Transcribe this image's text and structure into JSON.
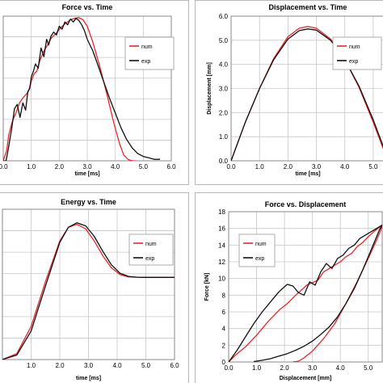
{
  "chart_data": [
    {
      "type": "line",
      "title": "Force vs. Time",
      "xlabel": "time [ms]",
      "ylabel": "",
      "xlim": [
        0,
        6
      ],
      "ylim": [
        0,
        1
      ],
      "x_ticks": [
        "0.0",
        "1.0",
        "2.0",
        "3.0",
        "4.0",
        "5.0",
        "6.0"
      ],
      "y_ticks": [],
      "legend": "right",
      "series": [
        {
          "name": "num",
          "color": "#e8262b",
          "x": [
            0,
            0.12,
            0.2,
            0.32,
            0.45,
            0.58,
            0.72,
            0.82,
            0.9,
            1.0,
            1.1,
            1.2,
            1.32,
            1.45,
            1.58,
            1.72,
            1.88,
            2.05,
            2.22,
            2.4,
            2.55,
            2.7,
            2.85,
            3.0,
            3.2,
            3.45,
            3.7,
            3.95,
            4.15,
            4.3,
            4.45,
            4.6,
            4.72
          ],
          "y": [
            0.0,
            0.07,
            0.18,
            0.27,
            0.33,
            0.4,
            0.44,
            0.46,
            0.48,
            0.55,
            0.6,
            0.62,
            0.7,
            0.76,
            0.8,
            0.85,
            0.88,
            0.92,
            0.95,
            0.975,
            0.985,
            0.99,
            0.975,
            0.93,
            0.82,
            0.65,
            0.46,
            0.26,
            0.12,
            0.04,
            0.01,
            0.0,
            0.0
          ]
        },
        {
          "name": "exp",
          "color": "#111111",
          "x": [
            0,
            0.1,
            0.18,
            0.3,
            0.4,
            0.5,
            0.6,
            0.7,
            0.8,
            0.88,
            0.95,
            1.0,
            1.08,
            1.15,
            1.25,
            1.35,
            1.45,
            1.55,
            1.62,
            1.7,
            1.8,
            1.9,
            2.0,
            2.1,
            2.2,
            2.3,
            2.4,
            2.5,
            2.6,
            2.7,
            2.8,
            2.9,
            3.0,
            3.2,
            3.4,
            3.6,
            3.8,
            4.0,
            4.2,
            4.4,
            4.6,
            4.8,
            5.0,
            5.2,
            5.4,
            5.6
          ],
          "y": [
            0.0,
            0.0,
            0.08,
            0.22,
            0.36,
            0.39,
            0.3,
            0.4,
            0.35,
            0.48,
            0.5,
            0.58,
            0.62,
            0.67,
            0.64,
            0.78,
            0.72,
            0.84,
            0.8,
            0.86,
            0.89,
            0.87,
            0.93,
            0.91,
            0.96,
            0.94,
            0.98,
            0.96,
            0.985,
            0.97,
            0.94,
            0.9,
            0.84,
            0.76,
            0.65,
            0.54,
            0.43,
            0.33,
            0.23,
            0.15,
            0.09,
            0.05,
            0.03,
            0.02,
            0.01,
            0.01
          ]
        }
      ]
    },
    {
      "type": "line",
      "title": "Displacement vs. Time",
      "xlabel": "time [ms]",
      "ylabel": "Displacement [mm]",
      "xlim": [
        0,
        5.4
      ],
      "ylim": [
        0,
        6
      ],
      "x_ticks": [
        "0.0",
        "1.0",
        "2.0",
        "3.0",
        "4.0",
        "5.0"
      ],
      "y_ticks": [
        "0.0",
        "1.0",
        "2.0",
        "3.0",
        "4.0",
        "5.0",
        "6.0"
      ],
      "legend": "right",
      "series": [
        {
          "name": "num",
          "color": "#e8262b",
          "x": [
            0,
            0.5,
            1.0,
            1.5,
            2.0,
            2.4,
            2.7,
            3.0,
            3.5,
            4.0,
            4.5,
            5.0,
            5.4
          ],
          "y": [
            0.0,
            1.6,
            3.0,
            4.25,
            5.15,
            5.5,
            5.57,
            5.5,
            5.05,
            4.2,
            3.05,
            1.6,
            0.35
          ]
        },
        {
          "name": "exp",
          "color": "#111111",
          "x": [
            0,
            0.5,
            1.0,
            1.5,
            2.0,
            2.4,
            2.7,
            3.0,
            3.5,
            4.0,
            4.5,
            5.0,
            5.4
          ],
          "y": [
            0.0,
            1.6,
            3.0,
            4.2,
            5.05,
            5.4,
            5.47,
            5.42,
            5.0,
            4.2,
            3.1,
            1.7,
            0.45
          ]
        }
      ]
    },
    {
      "type": "line",
      "title": "Energy vs. Time",
      "xlabel": "time [ms]",
      "ylabel": "",
      "xlim": [
        0,
        6
      ],
      "ylim": [
        0,
        1
      ],
      "x_ticks": [
        "1.0",
        "2.0",
        "3.0",
        "4.0",
        "5.0",
        "6.0"
      ],
      "y_ticks": [],
      "legend": "right",
      "series": [
        {
          "name": "num",
          "color": "#e8262b",
          "x": [
            0,
            0.5,
            1.0,
            1.5,
            2.0,
            2.3,
            2.6,
            2.9,
            3.2,
            3.5,
            3.8,
            4.1,
            4.4,
            4.7,
            5.0,
            5.3,
            6.0
          ],
          "y": [
            0.0,
            0.04,
            0.22,
            0.52,
            0.79,
            0.88,
            0.9,
            0.87,
            0.79,
            0.69,
            0.61,
            0.565,
            0.55,
            0.548,
            0.547,
            0.547,
            0.547
          ]
        },
        {
          "name": "exp",
          "color": "#111111",
          "x": [
            0,
            0.5,
            1.0,
            1.5,
            2.0,
            2.3,
            2.6,
            2.9,
            3.2,
            3.5,
            3.8,
            4.1,
            4.4,
            4.7,
            5.0,
            5.3,
            6.0
          ],
          "y": [
            0.0,
            0.03,
            0.19,
            0.49,
            0.78,
            0.88,
            0.91,
            0.89,
            0.82,
            0.72,
            0.63,
            0.575,
            0.553,
            0.548,
            0.547,
            0.547,
            0.547
          ]
        }
      ]
    },
    {
      "type": "line",
      "title": "Force vs. Displacement",
      "xlabel": "Displacement [mm]",
      "ylabel": "Force [kN]",
      "xlim": [
        0,
        5.5
      ],
      "ylim": [
        0,
        18
      ],
      "x_ticks": [
        "0.0",
        "1.0",
        "2.0",
        "3.0",
        "4.0",
        "5.0"
      ],
      "y_ticks": [
        "0",
        "2",
        "4",
        "6",
        "8",
        "10",
        "12",
        "14",
        "16",
        "18"
      ],
      "legend": "left",
      "series": [
        {
          "name": "num",
          "color": "#e8262b",
          "x": [
            0,
            0.3,
            0.6,
            1.0,
            1.4,
            1.8,
            2.1,
            2.4,
            2.6,
            2.8,
            3.0,
            3.2,
            3.4,
            3.6,
            3.8,
            4.0,
            4.2,
            4.4,
            4.6,
            4.8,
            5.0,
            5.2,
            5.5,
            5.45,
            5.3,
            5.0,
            4.6,
            4.2,
            3.8,
            3.4,
            3.0,
            2.7,
            2.5,
            2.3
          ],
          "y": [
            0,
            1.0,
            1.8,
            3.2,
            4.8,
            6.2,
            7.0,
            8.0,
            8.6,
            9.2,
            9.5,
            9.8,
            10.8,
            11.2,
            11.6,
            12.0,
            12.6,
            13.0,
            13.8,
            14.3,
            15.0,
            15.6,
            16.4,
            15.8,
            14.6,
            12.4,
            9.6,
            7.0,
            4.6,
            2.8,
            1.3,
            0.5,
            0.1,
            0.0
          ]
        },
        {
          "name": "exp",
          "color": "#111111",
          "x": [
            0,
            0.3,
            0.6,
            0.9,
            1.2,
            1.5,
            1.8,
            2.1,
            2.3,
            2.5,
            2.7,
            2.9,
            3.1,
            3.3,
            3.5,
            3.7,
            3.9,
            4.1,
            4.3,
            4.5,
            4.7,
            4.9,
            5.1,
            5.3,
            5.5,
            5.4,
            5.1,
            4.8,
            4.5,
            4.2,
            3.9,
            3.6,
            3.3,
            3.0,
            2.7,
            2.4,
            2.1,
            1.8,
            1.5,
            1.2,
            0.9
          ],
          "y": [
            0,
            1.4,
            3.0,
            4.6,
            6.0,
            7.2,
            8.4,
            9.3,
            9.1,
            8.3,
            8.0,
            9.6,
            9.2,
            10.8,
            11.8,
            11.2,
            12.4,
            12.8,
            13.6,
            14.0,
            14.8,
            15.2,
            15.6,
            16.0,
            16.4,
            15.8,
            13.4,
            11.0,
            8.8,
            7.0,
            5.4,
            4.2,
            3.3,
            2.5,
            1.9,
            1.4,
            1.0,
            0.7,
            0.4,
            0.2,
            0.05
          ]
        }
      ]
    }
  ]
}
